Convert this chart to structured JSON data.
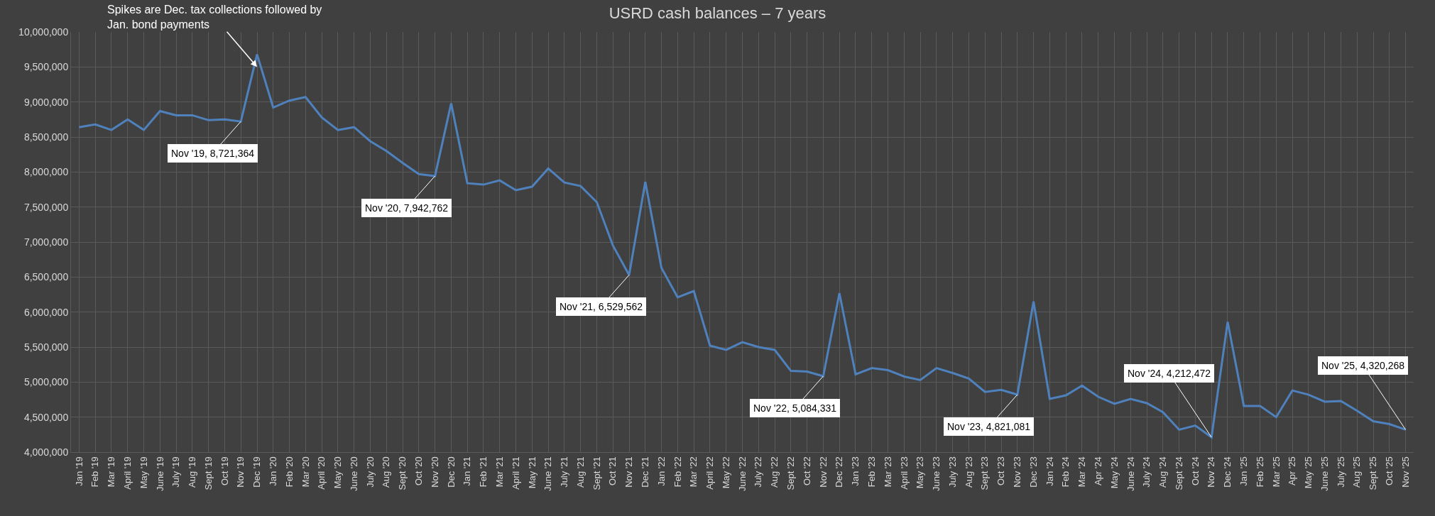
{
  "chart_data": {
    "type": "line",
    "title": "USRD cash balances – 7 years",
    "categories": [
      "Jan '19",
      "Feb '19",
      "Mar '19",
      "April '19",
      "May '19",
      "June '19",
      "July '19",
      "Aug '19",
      "Sept '19",
      "Oct '19",
      "Nov '19",
      "Dec '19",
      "Jan '20",
      "Feb '20",
      "Mar '20",
      "April '20",
      "May '20",
      "June '20",
      "July '20",
      "Aug '20",
      "Sept '20",
      "Oct '20",
      "Nov '20",
      "Dec '20",
      "Jan '21",
      "Feb '21",
      "Mar '21",
      "April '21",
      "May '21",
      "June '21",
      "July '21",
      "Aug '21",
      "Sept '21",
      "Oct '21",
      "Nov '21",
      "Dec '21",
      "Jan '22",
      "Feb '22",
      "Mar '22",
      "April '22",
      "May '22",
      "June '22",
      "July '22",
      "Aug '22",
      "Sept '22",
      "Oct '22",
      "Nov '22",
      "Dec '22",
      "Jan '23",
      "Feb '23",
      "Mar '23",
      "April '23",
      "May '23",
      "June '23",
      "July '23",
      "Aug '23",
      "Sept '23",
      "Oct '23",
      "Nov '23",
      "Dec '23",
      "Jan '24",
      "Feb '24",
      "Mar '24",
      "Apr '24",
      "May '24",
      "June '24",
      "July '24",
      "Aug '24",
      "Sept '24",
      "Oct '24",
      "Nov '24",
      "Dec '24",
      "Jan '25",
      "Feb '25",
      "Mar '25",
      "Apr '25",
      "May '25",
      "June '25",
      "July '25",
      "Aug '25",
      "Sept '25",
      "Oct '25",
      "Nov '25"
    ],
    "series": [
      {
        "color": "#4f81bd",
        "values": [
          8640000,
          8680000,
          8600000,
          8750000,
          8600000,
          8870000,
          8810000,
          8810000,
          8740000,
          8750000,
          8721364,
          9680000,
          8920000,
          9020000,
          9070000,
          8780000,
          8600000,
          8640000,
          8440000,
          8300000,
          8130000,
          7970000,
          7942762,
          8980000,
          7840000,
          7820000,
          7880000,
          7740000,
          7790000,
          8050000,
          7850000,
          7800000,
          7570000,
          6950000,
          6529562,
          7860000,
          6630000,
          6210000,
          6300000,
          5520000,
          5460000,
          5570000,
          5500000,
          5460000,
          5160000,
          5150000,
          5084331,
          6270000,
          5110000,
          5200000,
          5170000,
          5080000,
          5030000,
          5200000,
          5130000,
          5050000,
          4860000,
          4890000,
          4821081,
          6150000,
          4760000,
          4810000,
          4950000,
          4790000,
          4690000,
          4760000,
          4700000,
          4570000,
          4320000,
          4380000,
          4212472,
          5860000,
          4660000,
          4660000,
          4500000,
          4880000,
          4820000,
          4720000,
          4730000,
          4590000,
          4440000,
          4400000,
          4320268
        ]
      }
    ],
    "ylim": [
      4000000,
      10000000
    ],
    "yticks": [
      {
        "value": 4000000,
        "label": "4,000,000"
      },
      {
        "value": 4500000,
        "label": "4,500,000"
      },
      {
        "value": 5000000,
        "label": "5,000,000"
      },
      {
        "value": 5500000,
        "label": "5,500,000"
      },
      {
        "value": 6000000,
        "label": "6,000,000"
      },
      {
        "value": 6500000,
        "label": "6,500,000"
      },
      {
        "value": 7000000,
        "label": "7,000,000"
      },
      {
        "value": 7500000,
        "label": "7,500,000"
      },
      {
        "value": 8000000,
        "label": "8,000,000"
      },
      {
        "value": 8500000,
        "label": "8,500,000"
      },
      {
        "value": 9000000,
        "label": "9,000,000"
      },
      {
        "value": 9500000,
        "label": "9,500,000"
      },
      {
        "value": 10000000,
        "label": "10,000,000"
      }
    ],
    "grid": true,
    "legend": false,
    "marker": "none",
    "line_style": "solid",
    "annotations": [
      {
        "text": "Spikes are Dec. tax collections followed by\nJan. bond payments",
        "x": "Dec '19",
        "y": 9500000
      },
      {
        "text": "Nov '19, 8,721,364",
        "x": "Nov '19",
        "y": 8721364
      },
      {
        "text": "Nov '20, 7,942,762",
        "x": "Nov '20",
        "y": 7942762
      },
      {
        "text": "Nov '21, 6,529,562",
        "x": "Nov '21",
        "y": 6529562
      },
      {
        "text": "Nov '22, 5,084,331",
        "x": "Nov '22",
        "y": 5084331
      },
      {
        "text": "Nov '23, 4,821,081",
        "x": "Nov '23",
        "y": 4821081
      },
      {
        "text": "Nov '24, 4,212,472",
        "x": "Nov '24",
        "y": 4212472
      },
      {
        "text": "Nov '25, 4,320,268",
        "x": "Nov '25",
        "y": 4320268
      }
    ]
  }
}
